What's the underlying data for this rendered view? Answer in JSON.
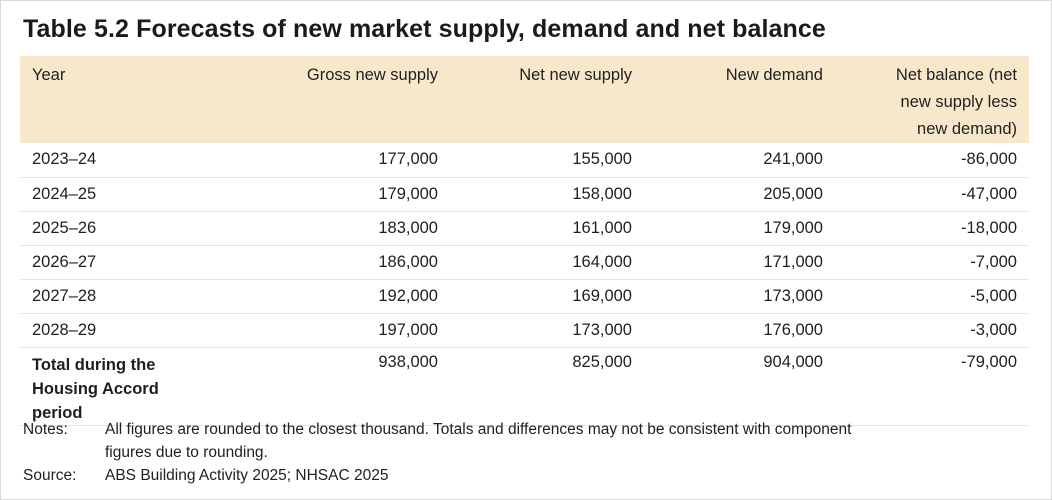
{
  "title": "Table 5.2 Forecasts of new market supply, demand and net balance",
  "columns": {
    "year": "Year",
    "gross": "Gross new supply",
    "net": "Net new supply",
    "demand": "New demand",
    "balance_line1": "Net balance (net",
    "balance_line2": "new supply less",
    "balance_line3": "new demand)"
  },
  "rows": [
    {
      "year": "2023–24",
      "gross": "177,000",
      "net": "155,000",
      "demand": "241,000",
      "balance": "-86,000"
    },
    {
      "year": "2024–25",
      "gross": "179,000",
      "net": "158,000",
      "demand": "205,000",
      "balance": "-47,000"
    },
    {
      "year": "2025–26",
      "gross": "183,000",
      "net": "161,000",
      "demand": "179,000",
      "balance": "-18,000"
    },
    {
      "year": "2026–27",
      "gross": "186,000",
      "net": "164,000",
      "demand": "171,000",
      "balance": "-7,000"
    },
    {
      "year": "2027–28",
      "gross": "192,000",
      "net": "169,000",
      "demand": "173,000",
      "balance": "-5,000"
    },
    {
      "year": "2028–29",
      "gross": "197,000",
      "net": "173,000",
      "demand": "176,000",
      "balance": "-3,000"
    }
  ],
  "total": {
    "label_line1": "Total during the",
    "label_line2": "Housing Accord period",
    "gross": "938,000",
    "net": "825,000",
    "demand": "904,000",
    "balance": "-79,000"
  },
  "notes": {
    "notes_label": "Notes:",
    "notes_text_line1": "All figures are rounded to the closest thousand. Totals and differences may not be consistent with component",
    "notes_text_line2": "figures due to rounding.",
    "source_label": "Source:",
    "source_text": "ABS Building Activity 2025; NHSAC 2025"
  },
  "colors": {
    "header_bg": "#f7e8cc",
    "row_border": "#e4e4e4"
  }
}
